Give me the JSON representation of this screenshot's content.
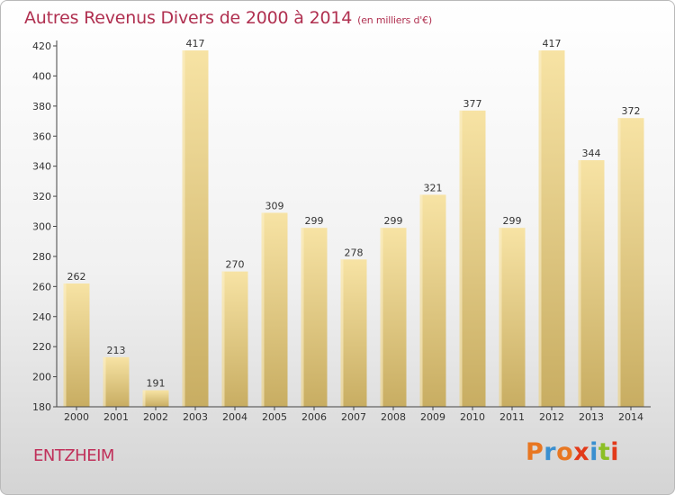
{
  "title": "Autres Revenus Divers de 2000 à 2014",
  "subtitle": "(en milliers d'€)",
  "commune": "ENTZHEIM",
  "brand": {
    "letters": [
      "P",
      "r",
      "o",
      "x",
      "i",
      "t",
      "i"
    ],
    "colors": [
      "#e87722",
      "#3a8fd0",
      "#e87722",
      "#e23a1a",
      "#3a8fd0",
      "#8cbf26",
      "#e23a1a"
    ]
  },
  "colors": {
    "bar_top": "#f7e3a4",
    "bar_bottom": "#c8ad62",
    "title": "#b03050"
  },
  "chart_data": {
    "type": "bar",
    "categories": [
      "2000",
      "2001",
      "2002",
      "2003",
      "2004",
      "2005",
      "2006",
      "2007",
      "2008",
      "2009",
      "2010",
      "2011",
      "2012",
      "2013",
      "2014"
    ],
    "values": [
      262,
      213,
      191,
      417,
      270,
      309,
      299,
      278,
      299,
      321,
      377,
      299,
      417,
      344,
      372
    ],
    "ylim": [
      180,
      420
    ],
    "yticks": [
      180,
      200,
      220,
      240,
      260,
      280,
      300,
      320,
      340,
      360,
      380,
      400,
      420
    ],
    "grid": false
  }
}
